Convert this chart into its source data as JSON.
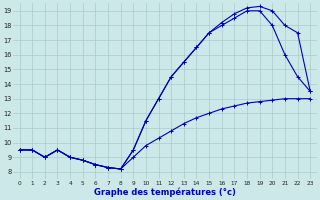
{
  "title": "Graphe des températures (°c)",
  "bg_color": "#cce8e8",
  "grid_color": "#aacccc",
  "line_color": "#0000bb",
  "xlim": [
    -0.5,
    23.5
  ],
  "ylim": [
    7.5,
    19.5
  ],
  "xticks": [
    0,
    1,
    2,
    3,
    4,
    5,
    6,
    7,
    8,
    9,
    10,
    11,
    12,
    13,
    14,
    15,
    16,
    17,
    18,
    19,
    20,
    21,
    22,
    23
  ],
  "yticks": [
    8,
    9,
    10,
    11,
    12,
    13,
    14,
    15,
    16,
    17,
    18,
    19
  ],
  "curve_min_x": [
    0,
    1,
    2,
    3,
    4,
    5,
    6,
    7,
    8,
    9,
    10,
    11,
    12,
    13,
    14,
    15,
    16,
    17,
    18,
    19,
    20,
    21,
    22,
    23
  ],
  "curve_min_y": [
    9.5,
    9.5,
    9.0,
    9.5,
    9.0,
    8.8,
    8.5,
    8.3,
    8.2,
    9.0,
    9.8,
    10.3,
    10.8,
    11.3,
    11.7,
    12.0,
    12.3,
    12.5,
    12.7,
    12.8,
    12.9,
    13.0,
    13.0,
    13.0
  ],
  "curve_actual_x": [
    0,
    1,
    2,
    3,
    4,
    5,
    6,
    7,
    8,
    9,
    10,
    11,
    12,
    13,
    14,
    15,
    16,
    17,
    18,
    19,
    20,
    21,
    22,
    23
  ],
  "curve_actual_y": [
    9.5,
    9.5,
    9.0,
    9.5,
    9.0,
    8.8,
    8.5,
    8.3,
    8.2,
    9.5,
    11.5,
    13.0,
    14.5,
    15.5,
    16.5,
    17.5,
    18.0,
    18.5,
    19.0,
    19.0,
    18.0,
    16.0,
    14.5,
    13.5
  ],
  "curve_max_x": [
    0,
    1,
    2,
    3,
    4,
    5,
    6,
    7,
    8,
    9,
    10,
    11,
    12,
    13,
    14,
    15,
    16,
    17,
    18,
    19,
    20,
    21,
    22,
    23
  ],
  "curve_max_y": [
    9.5,
    9.5,
    9.0,
    9.5,
    9.0,
    8.8,
    8.5,
    8.3,
    8.2,
    9.5,
    11.5,
    13.0,
    14.5,
    15.5,
    16.5,
    17.5,
    18.2,
    18.8,
    19.2,
    19.3,
    19.0,
    18.0,
    17.5,
    13.5
  ]
}
